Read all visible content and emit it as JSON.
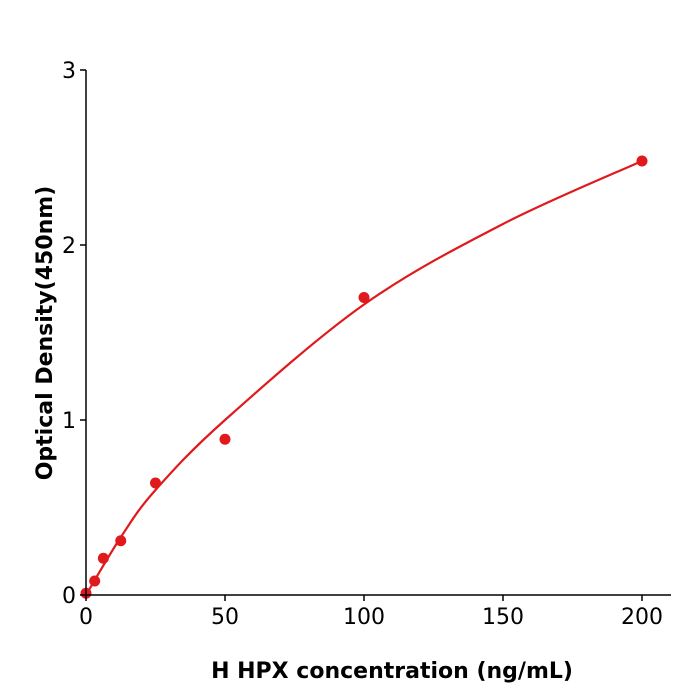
{
  "chart_data": {
    "type": "scatter",
    "title": "",
    "xlabel": "H  HPX concentration (ng/mL)",
    "ylabel": "Optical Density(450nm)",
    "xlim": [
      0,
      210
    ],
    "ylim": [
      0,
      3
    ],
    "xticks": [
      0,
      50,
      100,
      150,
      200
    ],
    "yticks": [
      0,
      1,
      2,
      3
    ],
    "grid": false,
    "color": "#e0191c",
    "points": [
      {
        "x": 0,
        "y": 0.01
      },
      {
        "x": 3.125,
        "y": 0.08
      },
      {
        "x": 6.25,
        "y": 0.21
      },
      {
        "x": 12.5,
        "y": 0.31
      },
      {
        "x": 25,
        "y": 0.64
      },
      {
        "x": 50,
        "y": 0.89
      },
      {
        "x": 100,
        "y": 1.7
      },
      {
        "x": 200,
        "y": 2.48
      }
    ],
    "fit_curve": [
      {
        "x": 0,
        "y": 0
      },
      {
        "x": 12.5,
        "y": 0.33
      },
      {
        "x": 25,
        "y": 0.6
      },
      {
        "x": 50,
        "y": 1.0
      },
      {
        "x": 100,
        "y": 1.66
      },
      {
        "x": 150,
        "y": 2.12
      },
      {
        "x": 200,
        "y": 2.48
      }
    ]
  }
}
